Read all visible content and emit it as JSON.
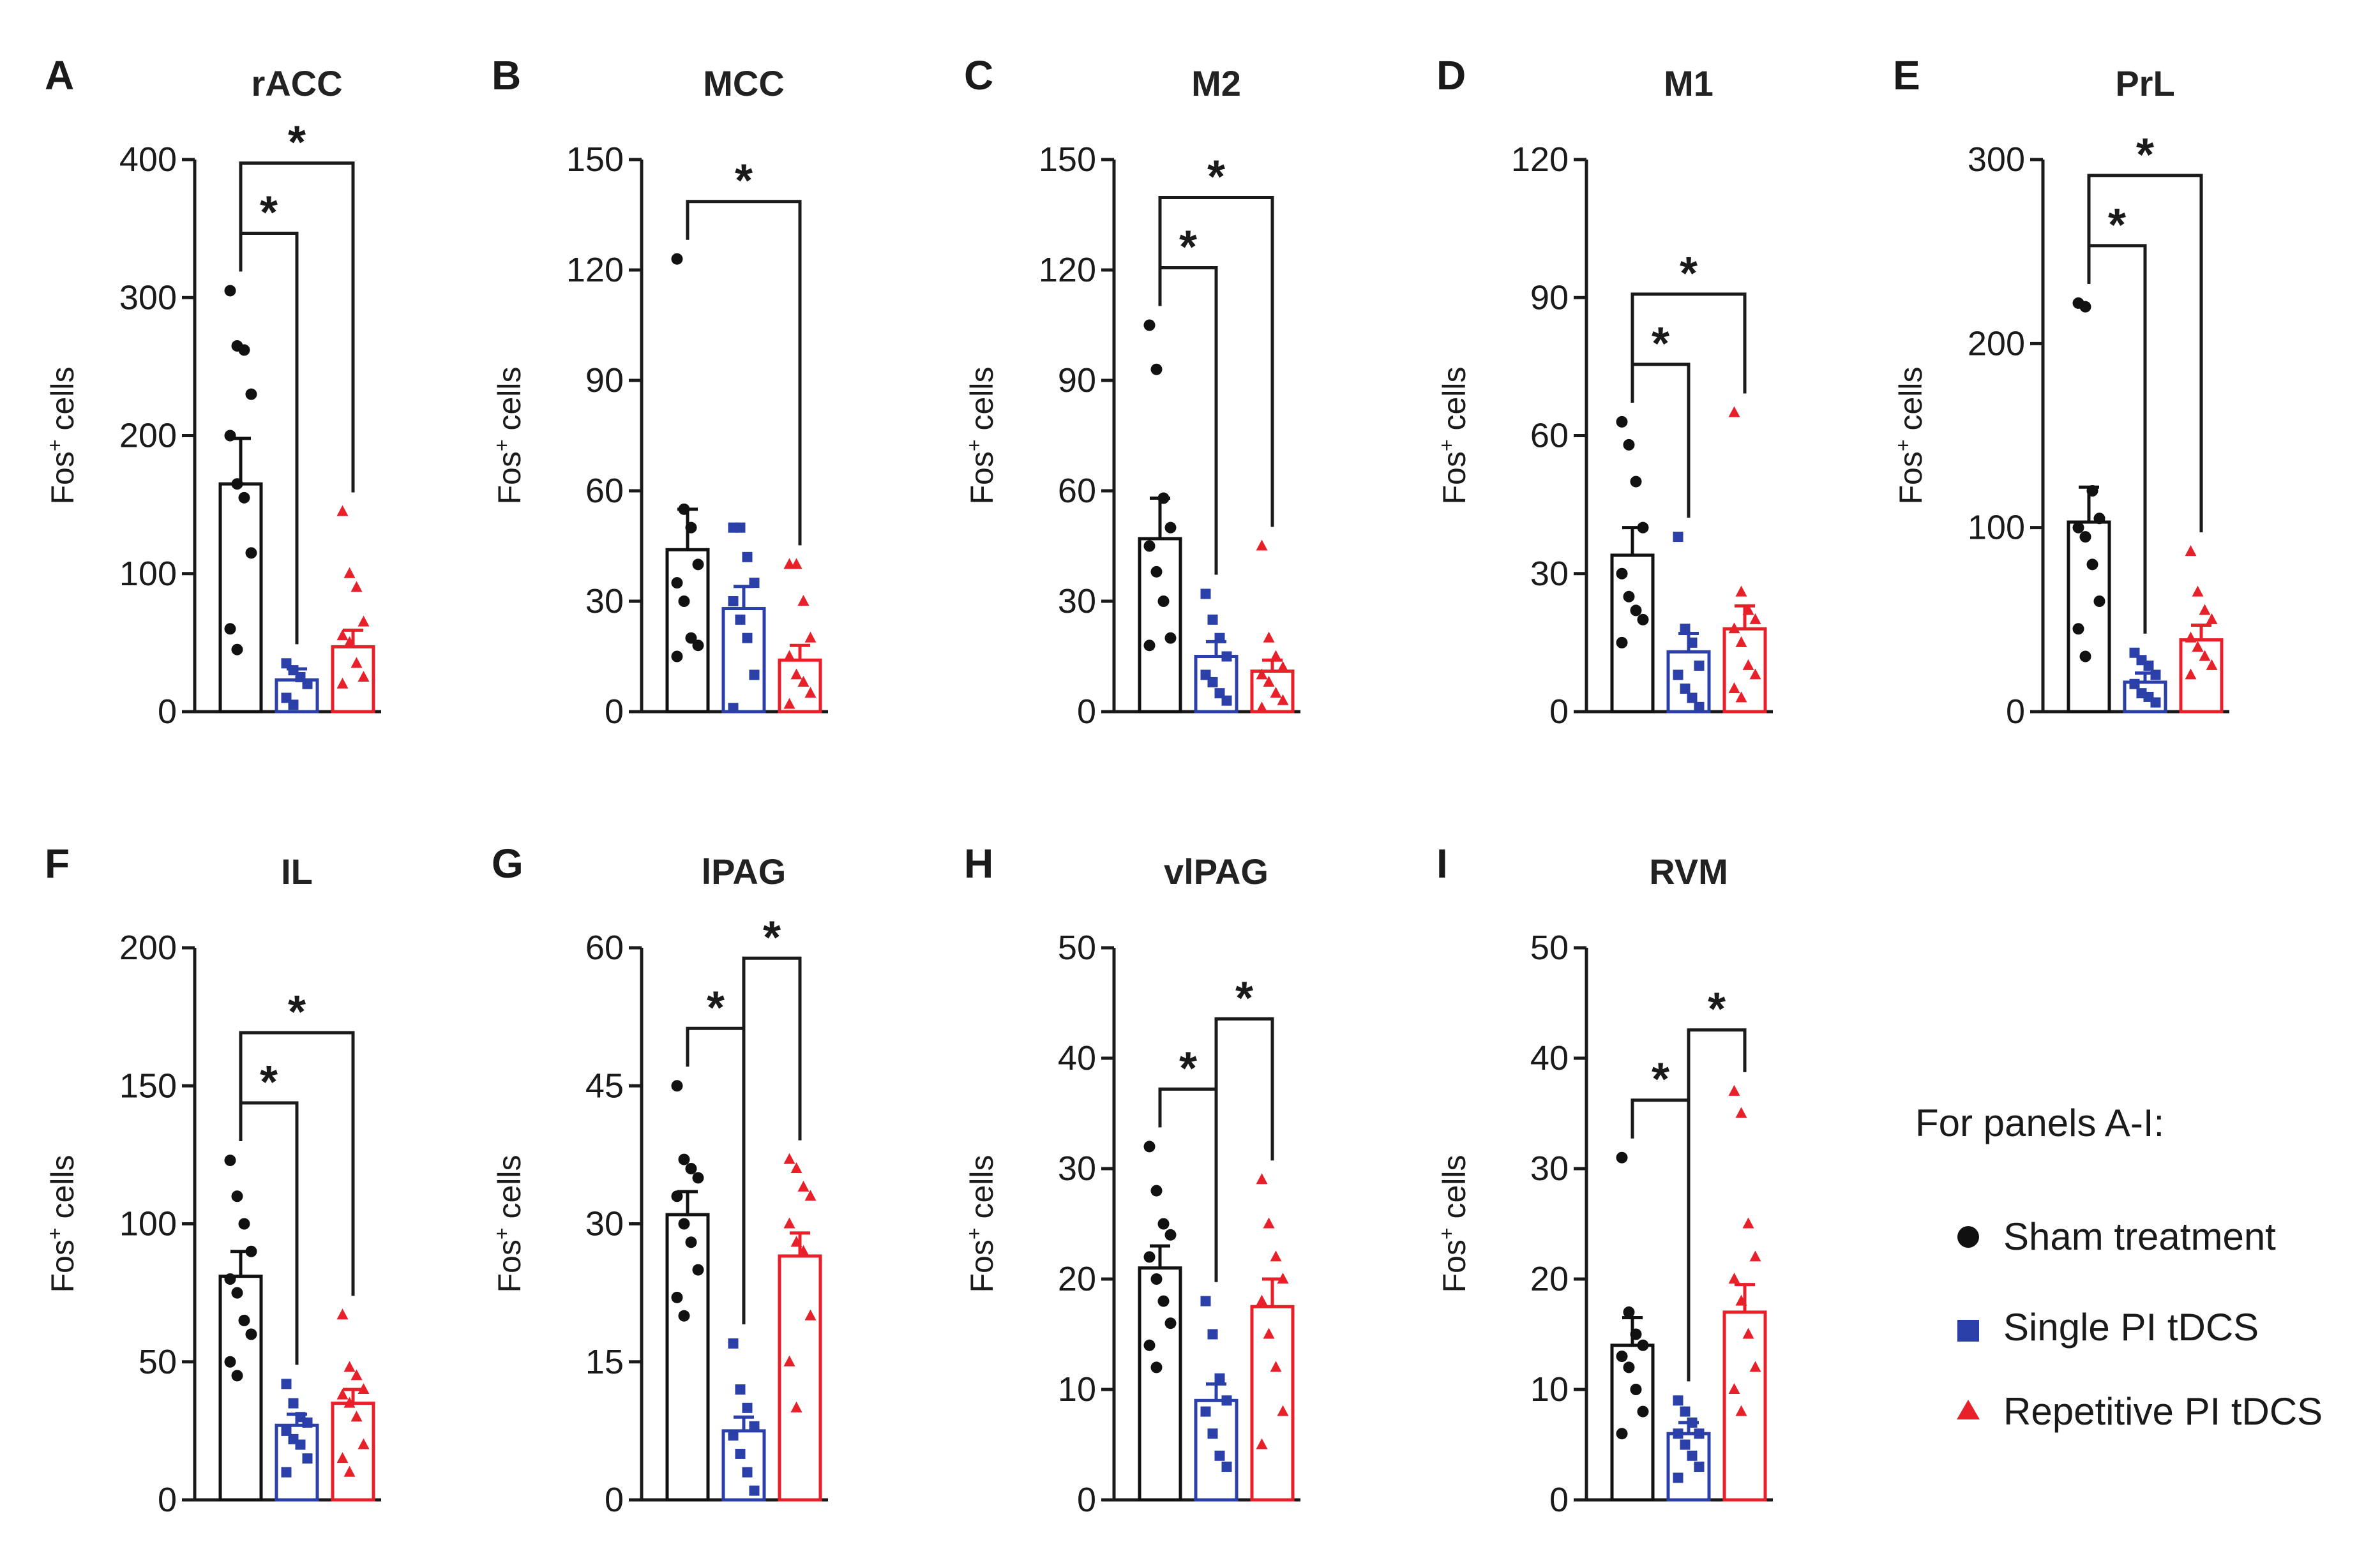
{
  "groups": [
    {
      "name": "Sham treatment",
      "color": "#111111",
      "marker": "circle"
    },
    {
      "name": "Single PI tDCS",
      "color": "#2b3fa8",
      "marker": "square"
    },
    {
      "name": "Repetitive PI tDCS",
      "color": "#e8202a",
      "marker": "triangle"
    }
  ],
  "legend": {
    "title": "For panels A-I:",
    "items": [
      "Sham treatment",
      "Single PI tDCS",
      "Repetitive PI tDCS"
    ]
  },
  "chart_data": [
    {
      "panel": "A",
      "title": "rACC",
      "type": "bar",
      "ylabel": "Fos+ cells",
      "ylim": [
        0,
        400
      ],
      "yticks": [
        0,
        100,
        200,
        300,
        400
      ],
      "categories": [
        "Sham treatment",
        "Single PI tDCS",
        "Repetitive PI tDCS"
      ],
      "values": [
        165,
        23,
        47
      ],
      "sem": [
        33,
        8,
        12
      ],
      "points": [
        [
          305,
          265,
          262,
          230,
          200,
          165,
          155,
          115,
          60,
          45
        ],
        [
          35,
          30,
          25,
          20,
          10,
          5
        ],
        [
          145,
          100,
          90,
          65,
          55,
          50,
          35,
          25,
          20
        ]
      ],
      "significance": [
        {
          "groups": [
            0,
            1
          ],
          "label": "*"
        },
        {
          "groups": [
            0,
            2
          ],
          "label": "*"
        }
      ]
    },
    {
      "panel": "B",
      "title": "MCC",
      "type": "bar",
      "ylabel": "Fos+ cells",
      "ylim": [
        0,
        150
      ],
      "yticks": [
        0,
        30,
        60,
        90,
        120,
        150
      ],
      "categories": [
        "Sham treatment",
        "Single PI tDCS",
        "Repetitive PI tDCS"
      ],
      "values": [
        44,
        28,
        14
      ],
      "sem": [
        11,
        6,
        4
      ],
      "points": [
        [
          123,
          55,
          50,
          40,
          35,
          30,
          20,
          18,
          15
        ],
        [
          50,
          50,
          42,
          35,
          30,
          25,
          20,
          10,
          1
        ],
        [
          40,
          40,
          30,
          20,
          15,
          10,
          8,
          5,
          2
        ]
      ],
      "significance": [
        {
          "groups": [
            0,
            2
          ],
          "label": "*"
        }
      ]
    },
    {
      "panel": "C",
      "title": "M2",
      "type": "bar",
      "ylabel": "Fos+ cells",
      "ylim": [
        0,
        150
      ],
      "yticks": [
        0,
        30,
        60,
        90,
        120,
        150
      ],
      "categories": [
        "Sham treatment",
        "Single PI tDCS",
        "Repetitive PI tDCS"
      ],
      "values": [
        47,
        15,
        11
      ],
      "sem": [
        11,
        4,
        3
      ],
      "points": [
        [
          105,
          93,
          58,
          50,
          45,
          38,
          30,
          20,
          18
        ],
        [
          32,
          25,
          20,
          15,
          10,
          8,
          5,
          3
        ],
        [
          45,
          20,
          15,
          12,
          10,
          8,
          5,
          3,
          1
        ]
      ],
      "significance": [
        {
          "groups": [
            0,
            1
          ],
          "label": "*"
        },
        {
          "groups": [
            0,
            2
          ],
          "label": "*"
        }
      ]
    },
    {
      "panel": "D",
      "title": "M1",
      "type": "bar",
      "ylabel": "Fos+ cells",
      "ylim": [
        0,
        120
      ],
      "yticks": [
        0,
        30,
        60,
        90,
        120
      ],
      "categories": [
        "Sham treatment",
        "Single PI tDCS",
        "Repetitive PI tDCS"
      ],
      "values": [
        34,
        13,
        18
      ],
      "sem": [
        6,
        4,
        5
      ],
      "points": [
        [
          63,
          58,
          50,
          40,
          30,
          25,
          22,
          20,
          15
        ],
        [
          38,
          18,
          15,
          10,
          8,
          5,
          3,
          1
        ],
        [
          65,
          26,
          22,
          20,
          18,
          15,
          10,
          8,
          5,
          3
        ]
      ],
      "significance": [
        {
          "groups": [
            0,
            1
          ],
          "label": "*"
        },
        {
          "groups": [
            0,
            2
          ],
          "label": "*"
        }
      ]
    },
    {
      "panel": "E",
      "title": "PrL",
      "type": "bar",
      "ylabel": "Fos+ cells",
      "ylim": [
        0,
        300
      ],
      "yticks": [
        0,
        100,
        200,
        300
      ],
      "categories": [
        "Sham treatment",
        "Single PI tDCS",
        "Repetitive PI tDCS"
      ],
      "values": [
        103,
        16,
        39
      ],
      "sem": [
        19,
        5,
        8
      ],
      "points": [
        [
          222,
          220,
          120,
          105,
          100,
          95,
          80,
          60,
          45,
          30
        ],
        [
          32,
          28,
          25,
          20,
          15,
          10,
          8,
          5
        ],
        [
          87,
          65,
          55,
          50,
          40,
          35,
          30,
          25,
          20
        ]
      ],
      "significance": [
        {
          "groups": [
            0,
            1
          ],
          "label": "*"
        },
        {
          "groups": [
            0,
            2
          ],
          "label": "*"
        }
      ]
    },
    {
      "panel": "F",
      "title": "IL",
      "type": "bar",
      "ylabel": "Fos+ cells",
      "ylim": [
        0,
        200
      ],
      "yticks": [
        0,
        50,
        100,
        150,
        200
      ],
      "categories": [
        "Sham treatment",
        "Single PI tDCS",
        "Repetitive PI tDCS"
      ],
      "values": [
        81,
        27,
        35
      ],
      "sem": [
        9,
        4,
        5
      ],
      "points": [
        [
          123,
          110,
          100,
          90,
          80,
          75,
          65,
          60,
          50,
          45
        ],
        [
          42,
          35,
          30,
          28,
          25,
          22,
          20,
          15,
          10
        ],
        [
          67,
          48,
          45,
          40,
          38,
          35,
          30,
          20,
          15,
          10
        ]
      ],
      "significance": [
        {
          "groups": [
            0,
            1
          ],
          "label": "*"
        },
        {
          "groups": [
            0,
            2
          ],
          "label": "*"
        }
      ]
    },
    {
      "panel": "G",
      "title": "lPAG",
      "type": "bar",
      "ylabel": "Fos+ cells",
      "ylim": [
        0,
        60
      ],
      "yticks": [
        0,
        15,
        30,
        45,
        60
      ],
      "categories": [
        "Sham treatment",
        "Single PI tDCS",
        "Repetitive PI tDCS"
      ],
      "values": [
        31,
        7.5,
        26.5
      ],
      "sem": [
        2.5,
        1.5,
        2.5
      ],
      "points": [
        [
          45,
          37,
          36,
          35,
          33,
          30,
          28,
          25,
          22,
          20
        ],
        [
          17,
          12,
          10,
          8,
          7,
          5,
          3,
          1
        ],
        [
          37,
          36,
          34,
          33,
          30,
          28,
          27,
          20,
          15,
          10
        ]
      ],
      "significance": [
        {
          "groups": [
            0,
            1
          ],
          "label": "*"
        },
        {
          "groups": [
            1,
            2
          ],
          "label": "*"
        }
      ]
    },
    {
      "panel": "H",
      "title": "vlPAG",
      "type": "bar",
      "ylabel": "Fos+ cells",
      "ylim": [
        0,
        50
      ],
      "yticks": [
        0,
        10,
        20,
        30,
        40,
        50
      ],
      "categories": [
        "Sham treatment",
        "Single PI tDCS",
        "Repetitive PI tDCS"
      ],
      "values": [
        21,
        9,
        17.5
      ],
      "sem": [
        2,
        1.5,
        2.5
      ],
      "points": [
        [
          32,
          28,
          25,
          24,
          22,
          20,
          18,
          16,
          14,
          12
        ],
        [
          18,
          15,
          11,
          9,
          8,
          6,
          4,
          3
        ],
        [
          29,
          25,
          22,
          20,
          18,
          15,
          12,
          8,
          5
        ]
      ],
      "significance": [
        {
          "groups": [
            0,
            1
          ],
          "label": "*"
        },
        {
          "groups": [
            1,
            2
          ],
          "label": "*"
        }
      ]
    },
    {
      "panel": "I",
      "title": "RVM",
      "type": "bar",
      "ylabel": "Fos+ cells",
      "ylim": [
        0,
        50
      ],
      "yticks": [
        0,
        10,
        20,
        30,
        40,
        50
      ],
      "categories": [
        "Sham treatment",
        "Single PI tDCS",
        "Repetitive PI tDCS"
      ],
      "values": [
        14,
        6,
        17
      ],
      "sem": [
        2.5,
        1,
        2.5
      ],
      "points": [
        [
          31,
          17,
          15,
          14,
          13,
          12,
          10,
          8,
          6
        ],
        [
          9,
          8,
          7,
          6,
          6,
          5,
          4,
          3,
          2
        ],
        [
          37,
          35,
          25,
          22,
          20,
          18,
          15,
          12,
          10,
          8
        ]
      ],
      "significance": [
        {
          "groups": [
            0,
            1
          ],
          "label": "*"
        },
        {
          "groups": [
            1,
            2
          ],
          "label": "*"
        }
      ]
    }
  ]
}
